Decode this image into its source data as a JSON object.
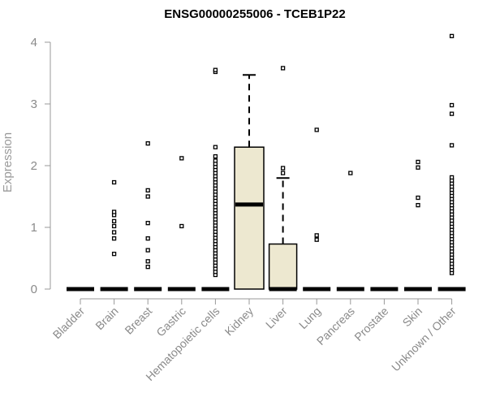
{
  "chart_data": {
    "type": "box",
    "title": "ENSG00000255006 - TCEB1P22",
    "xlabel": "",
    "ylabel": "Expression",
    "ylim": [
      0,
      4.2
    ],
    "yticks": [
      0,
      1,
      2,
      3,
      4
    ],
    "grid": false,
    "legend": "none",
    "colors": {
      "box_fill": "#ede8d0",
      "stroke": "#000000",
      "axis": "#999999",
      "tick_text": "#8a8a8a",
      "title": "#000000"
    },
    "categories": [
      "Bladder",
      "Brain",
      "Breast",
      "Gastric",
      "Hematopoietic cells",
      "Kidney",
      "Liver",
      "Lung",
      "Pancreas",
      "Prostate",
      "Skin",
      "Unknown / Other"
    ],
    "boxes": [
      {
        "category": "Bladder",
        "min": 0,
        "q1": 0,
        "median": 0,
        "q3": 0,
        "max": 0,
        "outliers": []
      },
      {
        "category": "Brain",
        "min": 0,
        "q1": 0,
        "median": 0,
        "q3": 0,
        "max": 0,
        "outliers": [
          0.57,
          0.82,
          0.92,
          1.02,
          1.1,
          1.2,
          1.25,
          1.73
        ]
      },
      {
        "category": "Breast",
        "min": 0,
        "q1": 0,
        "median": 0,
        "q3": 0,
        "max": 0,
        "outliers": [
          0.36,
          0.45,
          0.63,
          0.82,
          1.07,
          1.5,
          1.6,
          2.36
        ]
      },
      {
        "category": "Gastric",
        "min": 0,
        "q1": 0,
        "median": 0,
        "q3": 0,
        "max": 0,
        "outliers": [
          1.02,
          2.12
        ]
      },
      {
        "category": "Hematopoietic cells",
        "min": 0,
        "q1": 0,
        "median": 0,
        "q3": 0,
        "max": 0,
        "outliers": [
          0.23,
          0.28,
          0.33,
          0.38,
          0.43,
          0.48,
          0.53,
          0.58,
          0.63,
          0.68,
          0.73,
          0.78,
          0.83,
          0.88,
          0.93,
          0.98,
          1.03,
          1.08,
          1.13,
          1.18,
          1.23,
          1.28,
          1.33,
          1.38,
          1.43,
          1.48,
          1.53,
          1.58,
          1.63,
          1.68,
          1.73,
          1.78,
          1.83,
          1.88,
          1.93,
          1.98,
          2.03,
          2.08,
          2.15,
          2.3,
          3.52,
          3.55
        ]
      },
      {
        "category": "Kidney",
        "min": 0,
        "q1": 0,
        "median": 1.37,
        "q3": 2.3,
        "max": 3.47,
        "outliers": []
      },
      {
        "category": "Liver",
        "min": 0,
        "q1": 0,
        "median": 0,
        "q3": 0.73,
        "max": 1.8,
        "outliers": [
          1.88,
          1.96,
          3.58
        ]
      },
      {
        "category": "Lung",
        "min": 0,
        "q1": 0,
        "median": 0,
        "q3": 0,
        "max": 0,
        "outliers": [
          0.8,
          0.87,
          2.58
        ]
      },
      {
        "category": "Pancreas",
        "min": 0,
        "q1": 0,
        "median": 0,
        "q3": 0,
        "max": 0,
        "outliers": [
          1.88
        ]
      },
      {
        "category": "Prostate",
        "min": 0,
        "q1": 0,
        "median": 0,
        "q3": 0,
        "max": 0,
        "outliers": []
      },
      {
        "category": "Skin",
        "min": 0,
        "q1": 0,
        "median": 0,
        "q3": 0,
        "max": 0,
        "outliers": [
          1.36,
          1.48,
          1.97,
          2.06
        ]
      },
      {
        "category": "Unknown / Other",
        "min": 0,
        "q1": 0,
        "median": 0,
        "q3": 0,
        "max": 0,
        "outliers": [
          0.26,
          0.31,
          0.36,
          0.41,
          0.46,
          0.51,
          0.56,
          0.61,
          0.66,
          0.71,
          0.76,
          0.81,
          0.86,
          0.91,
          0.96,
          1.01,
          1.06,
          1.11,
          1.16,
          1.21,
          1.26,
          1.31,
          1.36,
          1.41,
          1.46,
          1.51,
          1.56,
          1.61,
          1.66,
          1.71,
          1.76,
          1.81,
          2.33,
          2.84,
          2.98,
          4.1
        ]
      }
    ]
  }
}
